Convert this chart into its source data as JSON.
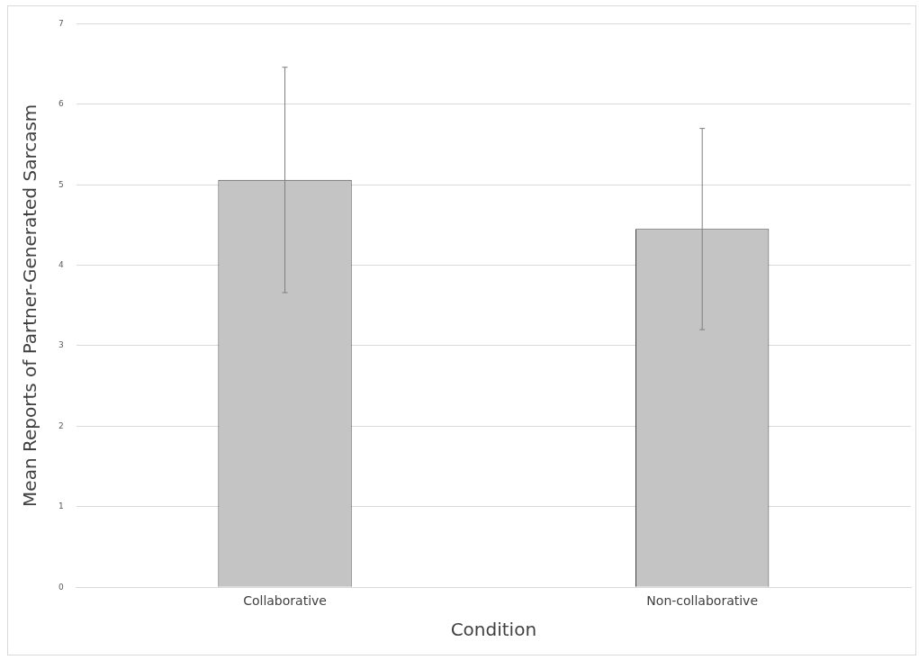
{
  "chart_data": {
    "type": "bar",
    "xlabel": "Condition",
    "ylabel": "Mean Reports of Partner-Generated Sarcasm",
    "categories": [
      "Collaborative",
      "Non-collaborative"
    ],
    "values": [
      5.06,
      4.45
    ],
    "errors": [
      1.4,
      1.25
    ],
    "color": "#c4c4c4",
    "ylim": [
      0,
      7
    ],
    "yticks": [
      0,
      1,
      2,
      3,
      4,
      5,
      6,
      7
    ],
    "grid": "y"
  }
}
